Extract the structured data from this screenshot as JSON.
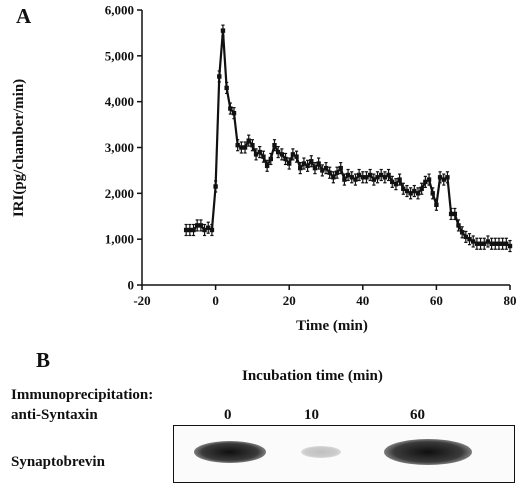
{
  "panel_a": {
    "letter": "A",
    "chart_data": {
      "type": "line",
      "xlabel": "Time (min)",
      "ylabel": "IRI(pg/chamber/min)",
      "xlim": [
        -20,
        80
      ],
      "ylim": [
        0,
        6000
      ],
      "xticks": [
        -20,
        0,
        20,
        40,
        60,
        80
      ],
      "xtick_labels": [
        "-20",
        "0",
        "20",
        "40",
        "60",
        "80"
      ],
      "yticks": [
        0,
        1000,
        2000,
        3000,
        4000,
        5000,
        6000
      ],
      "ytick_labels": [
        "0",
        "1,000",
        "2,000",
        "3,000",
        "4,000",
        "5,000",
        "6,000"
      ],
      "grid": false,
      "series": [
        {
          "x": [
            -8,
            -7,
            -6,
            -5,
            -4,
            -3,
            -2,
            -1,
            0,
            1,
            2,
            3,
            4,
            5,
            6,
            7,
            8,
            9,
            10,
            11,
            12,
            13,
            14,
            15,
            16,
            17,
            18,
            19,
            20,
            21,
            22,
            23,
            24,
            25,
            26,
            27,
            28,
            29,
            30,
            31,
            32,
            33,
            34,
            35,
            36,
            37,
            38,
            39,
            40,
            41,
            42,
            43,
            44,
            45,
            46,
            47,
            48,
            49,
            50,
            51,
            52,
            53,
            54,
            55,
            56,
            57,
            58,
            59,
            60,
            61,
            62,
            63,
            64,
            65,
            66,
            67,
            68,
            69,
            70,
            71,
            72,
            73,
            74,
            75,
            76,
            77,
            78,
            79,
            80
          ],
          "y": [
            1200,
            1200,
            1200,
            1300,
            1300,
            1200,
            1250,
            1200,
            2150,
            4550,
            5550,
            4300,
            3850,
            3750,
            3050,
            3000,
            3000,
            3150,
            3050,
            2850,
            2900,
            2800,
            2600,
            2750,
            3050,
            2900,
            2850,
            2750,
            2650,
            2850,
            2800,
            2550,
            2650,
            2600,
            2700,
            2550,
            2650,
            2500,
            2550,
            2450,
            2350,
            2450,
            2550,
            2300,
            2400,
            2350,
            2300,
            2400,
            2350,
            2350,
            2400,
            2300,
            2350,
            2400,
            2350,
            2400,
            2250,
            2200,
            2300,
            2100,
            2050,
            2000,
            2050,
            2000,
            2100,
            2250,
            2300,
            2000,
            1750,
            2350,
            2300,
            2350,
            1550,
            1550,
            1300,
            1150,
            1050,
            1000,
            950,
            900,
            900,
            900,
            950,
            900,
            900,
            900,
            900,
            900,
            850
          ],
          "error": 120
        }
      ]
    }
  },
  "panel_b": {
    "letter": "B",
    "immunoprecipitation_label": "Immunoprecipitation:",
    "antibody_label": "anti-Syntaxin",
    "incubation_label": "Incubation  time (min)",
    "time_points": [
      "0",
      "10",
      "60"
    ],
    "row_label": "Synaptobrevin",
    "band_intensity": [
      1.0,
      0.25,
      1.0
    ]
  }
}
